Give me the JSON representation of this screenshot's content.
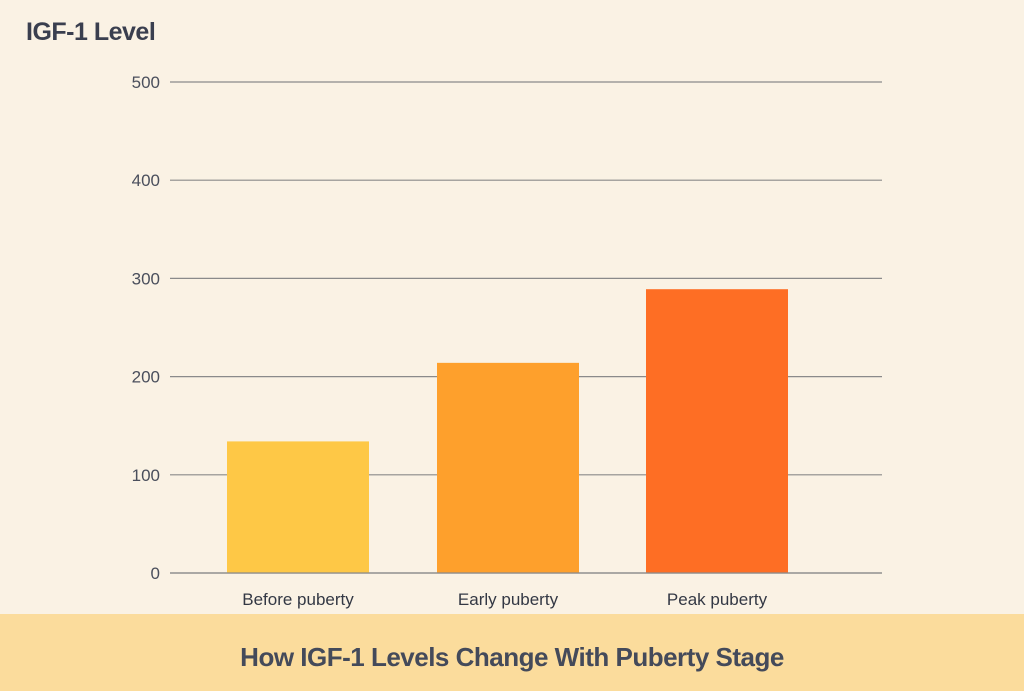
{
  "chart_data": {
    "type": "bar",
    "title": "How IGF-1 Levels Change With Puberty Stage",
    "ylabel": "IGF-1 Level",
    "xlabel": "",
    "categories": [
      "Before puberty",
      "Early puberty",
      "Peak puberty"
    ],
    "values": [
      134,
      214,
      289
    ],
    "ylim": [
      0,
      500
    ],
    "yticks": [
      0,
      100,
      200,
      300,
      400,
      500
    ],
    "grid": true,
    "bar_colors": [
      "#fec846",
      "#fea02c",
      "#fe6e24"
    ]
  },
  "colors": {
    "background": "#faf2e4",
    "footer_band": "#fbdc9c",
    "gridline": "#8a8a8a"
  }
}
